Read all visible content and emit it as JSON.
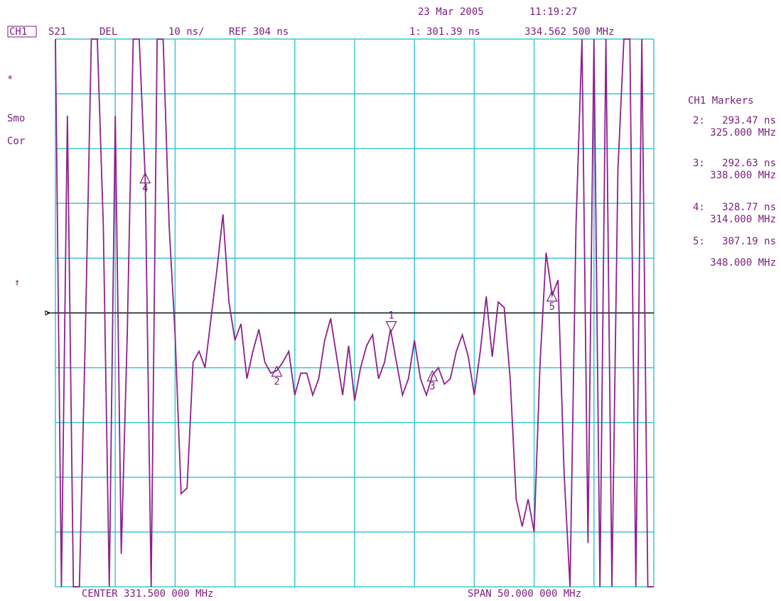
{
  "chart_data": {
    "type": "line",
    "date": "23 Mar 2005",
    "time": "11:19:27",
    "channel": "CH1",
    "parameter": "S21",
    "format": "DEL",
    "scale_label": "10 ns/",
    "ref": {
      "value": 304,
      "label": "REF 304 ns"
    },
    "status": [
      "*",
      "Smo",
      "Cor"
    ],
    "ref_arrow": "↑",
    "center_label": "CENTER 331.500 000 MHz",
    "span_label": "SPAN 50.000 000 MHz",
    "markers_title": "CH1 Markers",
    "xlim": [
      306.5,
      356.5
    ],
    "ylim": [
      254,
      354
    ],
    "x": [
      306.5,
      307,
      307.5,
      308,
      308.5,
      309,
      309.5,
      310,
      310.5,
      311,
      311.5,
      312,
      312.5,
      313,
      313.5,
      314,
      314.5,
      315,
      315.5,
      316,
      316.5,
      317,
      317.5,
      318,
      318.5,
      319,
      319.5,
      320,
      320.5,
      321,
      321.5,
      322,
      322.5,
      323,
      323.5,
      324,
      324.5,
      325,
      325.5,
      326,
      326.5,
      327,
      327.5,
      328,
      328.5,
      329,
      329.5,
      330,
      330.5,
      331,
      331.5,
      332,
      332.5,
      333,
      333.5,
      334,
      334.5,
      335,
      335.5,
      336,
      336.5,
      337,
      337.5,
      338,
      338.5,
      339,
      339.5,
      340,
      340.5,
      341,
      341.5,
      342,
      342.5,
      343,
      343.5,
      344,
      344.5,
      345,
      345.5,
      346,
      346.5,
      347,
      347.5,
      348,
      348.5,
      349,
      349.5,
      350,
      350.5,
      351,
      351.5,
      352,
      352.5,
      353,
      353.5,
      354,
      354.5,
      355,
      355.5,
      356,
      356.5
    ],
    "series": [
      {
        "color": "#8e1f8e",
        "values": [
          354,
          254,
          340,
          254,
          254,
          300,
          354,
          354,
          320,
          254,
          340,
          260,
          300,
          354,
          354,
          328.77,
          254,
          354,
          354,
          320,
          300,
          271,
          272,
          295,
          297,
          294,
          303,
          312,
          322,
          306,
          299,
          302,
          292,
          297,
          301,
          295,
          293,
          293.47,
          295,
          297,
          289,
          293,
          293,
          289,
          292,
          299,
          303,
          296,
          289,
          298,
          288,
          294,
          298,
          300,
          292,
          295,
          301,
          295,
          289,
          292,
          299,
          292,
          289,
          292.63,
          294,
          291,
          292,
          297,
          300,
          296,
          289,
          297,
          307,
          296,
          306,
          305,
          292,
          270,
          265,
          270,
          264,
          295,
          315,
          307.19,
          310,
          275,
          254,
          320,
          354,
          262,
          354,
          254,
          354,
          254,
          330,
          354,
          354,
          254,
          354,
          254,
          254
        ]
      }
    ],
    "markers": [
      {
        "id": "1",
        "key": "1:",
        "delay": {
          "value": 301.39,
          "label": "301.39 ns"
        },
        "freq": {
          "value": 334.5625,
          "label": "334.562 500 MHz"
        }
      },
      {
        "id": "2",
        "key": "2:",
        "delay": {
          "value": 293.47,
          "label": "293.47 ns"
        },
        "freq": {
          "value": 325,
          "label": "325.000 MHz"
        }
      },
      {
        "id": "3",
        "key": "3:",
        "delay": {
          "value": 292.63,
          "label": "292.63 ns"
        },
        "freq": {
          "value": 338,
          "label": "338.000 MHz"
        }
      },
      {
        "id": "4",
        "key": "4:",
        "delay": {
          "value": 328.77,
          "label": "328.77 ns"
        },
        "freq": {
          "value": 314,
          "label": "314.000 MHz"
        }
      },
      {
        "id": "5",
        "key": "5:",
        "delay": {
          "value": 307.19,
          "label": "307.19 ns"
        },
        "freq": {
          "value": 348,
          "label": "348.000 MHz"
        }
      }
    ]
  }
}
